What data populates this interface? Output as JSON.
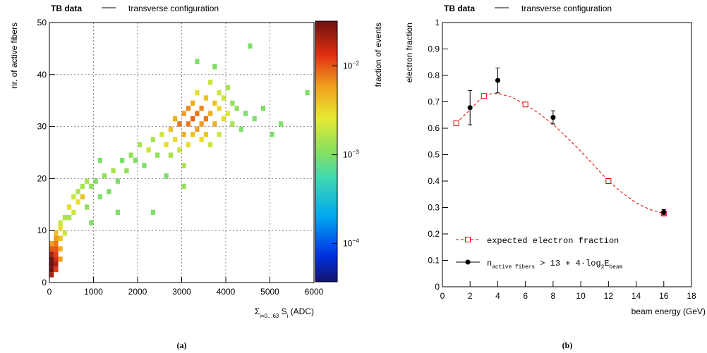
{
  "chart_data": [
    {
      "type": "heatmap",
      "header": {
        "label": "TB data",
        "entry": "transverse configuration"
      },
      "xlabel_parts": [
        "Σ",
        "i=0…63",
        " S",
        "i",
        " (ADC)"
      ],
      "ylabel": "nr. of active fibers",
      "zlabel": "fraction of events",
      "panel_label": "(a)",
      "xlim": [
        0,
        6000
      ],
      "xticks": [
        0,
        1000,
        2000,
        3000,
        4000,
        5000,
        6000
      ],
      "ylim": [
        0,
        50
      ],
      "yticks": [
        0,
        10,
        20,
        30,
        40,
        50
      ],
      "zlim": [
        3.7e-05,
        0.032
      ],
      "log_z": true,
      "zticks": [
        {
          "value": 0.0001,
          "label": "10",
          "exponent": "−4"
        },
        {
          "value": 0.001,
          "label": "10",
          "exponent": "−3"
        },
        {
          "value": 0.01,
          "label": "10",
          "exponent": "−2"
        }
      ],
      "grid": true,
      "bin_size": [
        100,
        1
      ],
      "cells": [
        [
          0,
          1,
          0.02
        ],
        [
          0,
          2,
          0.03
        ],
        [
          0,
          3,
          0.031
        ],
        [
          0,
          4,
          0.03
        ],
        [
          0,
          5,
          0.02
        ],
        [
          0,
          6,
          0.01
        ],
        [
          0,
          7,
          0.006
        ],
        [
          100,
          2,
          0.012
        ],
        [
          100,
          3,
          0.02
        ],
        [
          100,
          4,
          0.015
        ],
        [
          100,
          5,
          0.012
        ],
        [
          100,
          6,
          0.01
        ],
        [
          100,
          7,
          0.008
        ],
        [
          100,
          8,
          0.006
        ],
        [
          100,
          9,
          0.004
        ],
        [
          200,
          4,
          0.006
        ],
        [
          200,
          6,
          0.005
        ],
        [
          200,
          8,
          0.004
        ],
        [
          200,
          10,
          0.003
        ],
        [
          200,
          11,
          0.002
        ],
        [
          300,
          9,
          0.002
        ],
        [
          300,
          12,
          0.0015
        ],
        [
          400,
          12,
          0.0015
        ],
        [
          400,
          14,
          0.003
        ],
        [
          500,
          13,
          0.002
        ],
        [
          500,
          16,
          0.002
        ],
        [
          600,
          15,
          0.003
        ],
        [
          600,
          17,
          0.0015
        ],
        [
          700,
          16,
          0.004
        ],
        [
          700,
          18,
          0.0015
        ],
        [
          800,
          14,
          0.0012
        ],
        [
          800,
          19,
          0.0015
        ],
        [
          900,
          18,
          0.0012
        ],
        [
          900,
          11,
          0.001
        ],
        [
          1000,
          19,
          0.001
        ],
        [
          1100,
          16,
          0.001
        ],
        [
          1200,
          20,
          0.0012
        ],
        [
          1300,
          17,
          0.001
        ],
        [
          1400,
          21,
          0.0015
        ],
        [
          1500,
          19,
          0.001
        ],
        [
          1600,
          23,
          0.001
        ],
        [
          1700,
          21,
          0.0012
        ],
        [
          1800,
          24,
          0.0012
        ],
        [
          1900,
          23,
          0.001
        ],
        [
          2000,
          26,
          0.0015
        ],
        [
          2100,
          22,
          0.001
        ],
        [
          2200,
          25,
          0.002
        ],
        [
          2300,
          27,
          0.0015
        ],
        [
          2300,
          13,
          0.001
        ],
        [
          2400,
          24,
          0.0012
        ],
        [
          2500,
          28,
          0.002
        ],
        [
          2600,
          26,
          0.003
        ],
        [
          2700,
          29,
          0.004
        ],
        [
          2700,
          24,
          0.0015
        ],
        [
          2800,
          31,
          0.005
        ],
        [
          2800,
          27,
          0.003
        ],
        [
          2900,
          30,
          0.008
        ],
        [
          2900,
          25,
          0.002
        ],
        [
          3000,
          32,
          0.006
        ],
        [
          3000,
          28,
          0.005
        ],
        [
          3000,
          22,
          0.0015
        ],
        [
          3100,
          33,
          0.007
        ],
        [
          3100,
          30,
          0.008
        ],
        [
          3100,
          26,
          0.003
        ],
        [
          3200,
          31,
          0.009
        ],
        [
          3200,
          34,
          0.005
        ],
        [
          3200,
          28,
          0.004
        ],
        [
          3300,
          32,
          0.008
        ],
        [
          3300,
          29,
          0.006
        ],
        [
          3300,
          36,
          0.003
        ],
        [
          3400,
          33,
          0.007
        ],
        [
          3400,
          30,
          0.006
        ],
        [
          3400,
          27,
          0.003
        ],
        [
          3500,
          35,
          0.004
        ],
        [
          3500,
          31,
          0.008
        ],
        [
          3500,
          28,
          0.004
        ],
        [
          3600,
          32,
          0.005
        ],
        [
          3600,
          38,
          0.002
        ],
        [
          3600,
          26,
          0.002
        ],
        [
          3700,
          34,
          0.004
        ],
        [
          3700,
          30,
          0.005
        ],
        [
          3800,
          33,
          0.003
        ],
        [
          3800,
          36,
          0.002
        ],
        [
          3800,
          28,
          0.002
        ],
        [
          3900,
          35,
          0.002
        ],
        [
          3900,
          31,
          0.003
        ],
        [
          4000,
          32,
          0.0025
        ],
        [
          4000,
          37,
          0.0015
        ],
        [
          4100,
          30,
          0.0015
        ],
        [
          4100,
          34,
          0.0012
        ],
        [
          4200,
          33,
          0.0012
        ],
        [
          4300,
          29,
          0.001
        ],
        [
          4400,
          32,
          0.001
        ],
        [
          4500,
          45,
          0.001
        ],
        [
          4600,
          31,
          0.001
        ],
        [
          4800,
          33,
          0.001
        ],
        [
          5000,
          28,
          0.001
        ],
        [
          5200,
          30,
          0.001
        ],
        [
          5800,
          36,
          0.001
        ],
        [
          3300,
          42,
          0.001
        ],
        [
          3700,
          41,
          0.001
        ],
        [
          1100,
          23,
          0.001
        ],
        [
          1500,
          13,
          0.001
        ],
        [
          2600,
          20,
          0.001
        ],
        [
          3000,
          18,
          0.0012
        ]
      ]
    },
    {
      "type": "scatter",
      "header": {
        "label": "TB data",
        "entry": "transverse configuration"
      },
      "xlabel": "beam energy (GeV)",
      "ylabel": "electron fraction",
      "panel_label": "(b)",
      "xlim": [
        0,
        18
      ],
      "xticks": [
        0,
        2,
        4,
        6,
        8,
        10,
        12,
        14,
        16,
        18
      ],
      "ylim": [
        0,
        1
      ],
      "yticks": [
        0,
        0.1,
        0.2,
        0.3,
        0.4,
        0.5,
        0.6,
        0.7,
        0.8,
        0.9,
        1
      ],
      "series": [
        {
          "name": "expected electron fraction",
          "color": "#e00000",
          "x": [
            1,
            3,
            6,
            12,
            16
          ],
          "y": [
            0.619,
            0.722,
            0.69,
            0.4,
            0.277
          ],
          "curve_x": [
            1,
            1.5,
            2,
            2.5,
            3,
            3.5,
            4,
            5,
            6,
            7,
            8,
            9,
            10,
            11,
            12,
            13,
            14,
            15,
            16
          ],
          "curve_y": [
            0.619,
            0.645,
            0.67,
            0.698,
            0.722,
            0.73,
            0.732,
            0.718,
            0.69,
            0.655,
            0.615,
            0.565,
            0.513,
            0.457,
            0.4,
            0.355,
            0.318,
            0.292,
            0.277
          ]
        },
        {
          "name_parts": [
            "n",
            "active fibers",
            " > 13 + 4·log",
            "2",
            "E",
            "beam"
          ],
          "color": "#000000",
          "x": [
            2,
            4,
            8,
            16
          ],
          "y": [
            0.678,
            0.781,
            0.641,
            0.282
          ],
          "errors": [
            0.065,
            0.047,
            0.025,
            0.01
          ]
        }
      ]
    }
  ]
}
